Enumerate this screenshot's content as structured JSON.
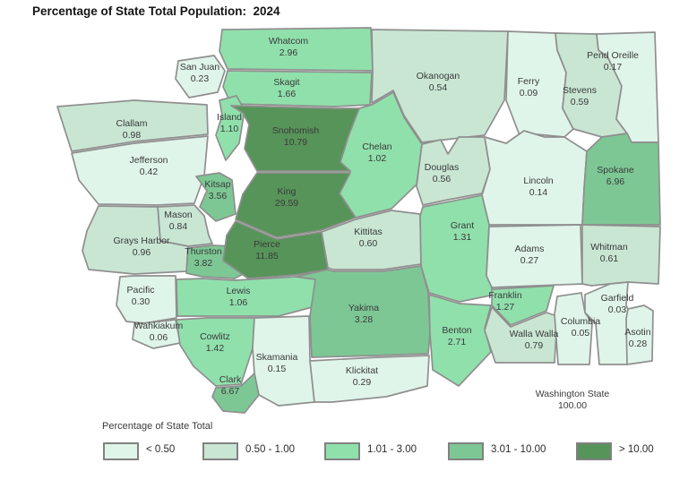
{
  "title": "Percentage of State Total Population:  2024",
  "map": {
    "counties": [
      {
        "id": "whatcom",
        "name": "Whatcom",
        "value": "2.96",
        "band": 2
      },
      {
        "id": "sanjuan",
        "name": "San Juan",
        "value": "0.23",
        "band": 0
      },
      {
        "id": "skagit",
        "name": "Skagit",
        "value": "1.66",
        "band": 2
      },
      {
        "id": "island",
        "name": "Island",
        "value": "1.10",
        "band": 2
      },
      {
        "id": "clallam",
        "name": "Clallam",
        "value": "0.98",
        "band": 1
      },
      {
        "id": "jefferson",
        "name": "Jefferson",
        "value": "0.42",
        "band": 0
      },
      {
        "id": "snohomish",
        "name": "Snohomish",
        "value": "10.79",
        "band": 4
      },
      {
        "id": "chelan",
        "name": "Chelan",
        "value": "1.02",
        "band": 2
      },
      {
        "id": "okanogan",
        "name": "Okanogan",
        "value": "0.54",
        "band": 1
      },
      {
        "id": "ferry",
        "name": "Ferry",
        "value": "0.09",
        "band": 0
      },
      {
        "id": "stevens",
        "name": "Stevens",
        "value": "0.59",
        "band": 1
      },
      {
        "id": "pendoreille",
        "name": "Pend Oreille",
        "value": "0.17",
        "band": 0
      },
      {
        "id": "kitsap",
        "name": "Kitsap",
        "value": "3.56",
        "band": 3
      },
      {
        "id": "king",
        "name": "King",
        "value": "29.59",
        "band": 4
      },
      {
        "id": "mason",
        "name": "Mason",
        "value": "0.84",
        "band": 1
      },
      {
        "id": "graysharbor",
        "name": "Grays Harbor",
        "value": "0.96",
        "band": 1
      },
      {
        "id": "thurston",
        "name": "Thurston",
        "value": "3.82",
        "band": 3
      },
      {
        "id": "pierce",
        "name": "Pierce",
        "value": "11.85",
        "band": 4
      },
      {
        "id": "douglas",
        "name": "Douglas",
        "value": "0.56",
        "band": 1
      },
      {
        "id": "lincoln",
        "name": "Lincoln",
        "value": "0.14",
        "band": 0
      },
      {
        "id": "spokane",
        "name": "Spokane",
        "value": "6.96",
        "band": 3
      },
      {
        "id": "kittitas",
        "name": "Kittitas",
        "value": "0.60",
        "band": 1
      },
      {
        "id": "grant",
        "name": "Grant",
        "value": "1.31",
        "band": 2
      },
      {
        "id": "adams",
        "name": "Adams",
        "value": "0.27",
        "band": 0
      },
      {
        "id": "whitman",
        "name": "Whitman",
        "value": "0.61",
        "band": 1
      },
      {
        "id": "pacific",
        "name": "Pacific",
        "value": "0.30",
        "band": 0
      },
      {
        "id": "lewis",
        "name": "Lewis",
        "value": "1.06",
        "band": 2
      },
      {
        "id": "yakima",
        "name": "Yakima",
        "value": "3.28",
        "band": 3
      },
      {
        "id": "wahkiakum",
        "name": "Wahkiakum",
        "value": "0.06",
        "band": 0
      },
      {
        "id": "cowlitz",
        "name": "Cowlitz",
        "value": "1.42",
        "band": 2
      },
      {
        "id": "skamania",
        "name": "Skamania",
        "value": "0.15",
        "band": 0
      },
      {
        "id": "clark",
        "name": "Clark",
        "value": "6.67",
        "band": 3
      },
      {
        "id": "klickitat",
        "name": "Klickitat",
        "value": "0.29",
        "band": 0
      },
      {
        "id": "benton",
        "name": "Benton",
        "value": "2.71",
        "band": 2
      },
      {
        "id": "franklin",
        "name": "Franklin",
        "value": "1.27",
        "band": 2
      },
      {
        "id": "wallawalla",
        "name": "Walla Walla",
        "value": "0.79",
        "band": 1
      },
      {
        "id": "columbia",
        "name": "Columbia",
        "value": "0.05",
        "band": 0
      },
      {
        "id": "garfield",
        "name": "Garfield",
        "value": "0.03",
        "band": 0
      },
      {
        "id": "asotin",
        "name": "Asotin",
        "value": "0.28",
        "band": 0
      }
    ],
    "state_total": {
      "name": "Washington State",
      "value": "100.00"
    }
  },
  "legend": {
    "title": "Percentage of State Total",
    "bands": [
      {
        "label": "< 0.50",
        "color": "#e0f5e9"
      },
      {
        "label": "0.50 - 1.00",
        "color": "#c9e6d3"
      },
      {
        "label": "1.01 - 3.00",
        "color": "#90e0ac"
      },
      {
        "label": "3.01 - 10.00",
        "color": "#7dc795"
      },
      {
        "label": "> 10.00",
        "color": "#579459"
      }
    ]
  },
  "colors": {
    "border": "#8f8f8f",
    "label_text": "#3a3a3a"
  }
}
